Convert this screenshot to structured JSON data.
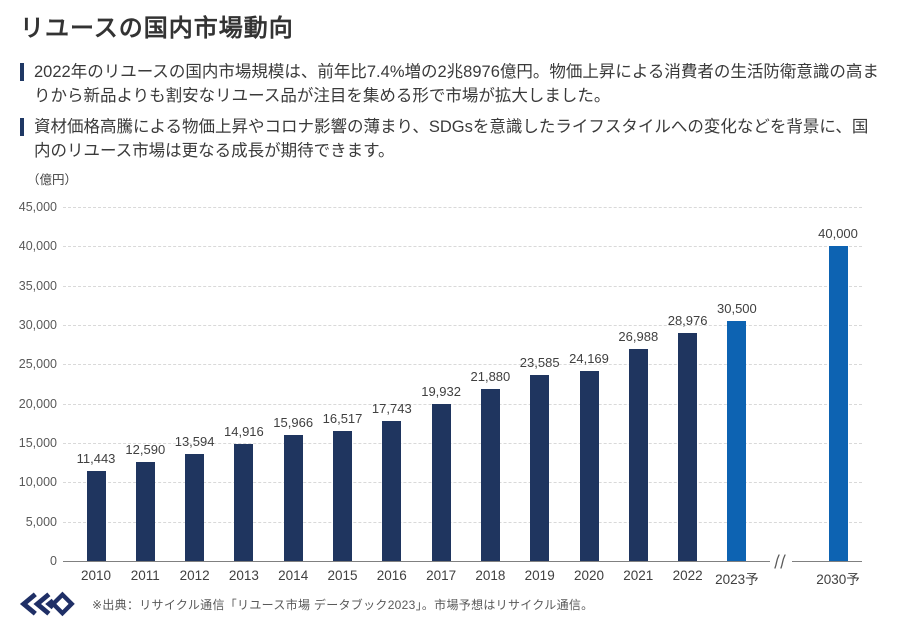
{
  "page": {
    "title": "リユースの国内市場動向"
  },
  "bullets": [
    {
      "text": "2022年のリユースの国内市場規模は、前年比7.4%増の2兆8976億円。物価上昇による消費者の生活防衛意識の高まりから新品よりも割安なリユース品が注目を集める形で市場が拡大しました。"
    },
    {
      "text": "資材価格高騰による物価上昇やコロナ影響の薄まり、SDGsを意識したライフスタイルへの変化などを背景に、国内のリユース市場は更なる成長が期待できます。"
    }
  ],
  "chart_data": {
    "type": "bar",
    "title": "リユースの国内市場動向",
    "unit_label": "（億円）",
    "ylabel": "億円",
    "xlabel": "",
    "categories": [
      "2010",
      "2011",
      "2012",
      "2013",
      "2014",
      "2015",
      "2016",
      "2017",
      "2018",
      "2019",
      "2020",
      "2021",
      "2022",
      "2023予",
      "2030予"
    ],
    "values": [
      11443,
      12590,
      13594,
      14916,
      15966,
      16517,
      17743,
      19932,
      21880,
      23585,
      24169,
      26988,
      28976,
      30500,
      40000
    ],
    "highlighted": [
      "2023予",
      "2030予"
    ],
    "colors": {
      "bar_default": "#1f355f",
      "bar_forecast": "#0d63b2",
      "gridline": "#d9d9d9",
      "axis": "#808080"
    },
    "ylim": [
      0,
      45000
    ],
    "ytick_step": 5000,
    "grid": "horizontal-dashed",
    "legend": "none",
    "data_labels": "above-bars, comma-formatted",
    "axis_break_between": [
      "2023予",
      "2030予"
    ]
  },
  "footer": {
    "logo_text": "GEO",
    "source": "※出典：リサイクル通信「リユース市場 データブック2023」。市場予想はリサイクル通信。"
  }
}
